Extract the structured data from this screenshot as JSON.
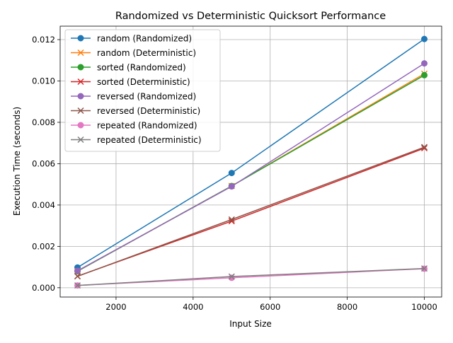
{
  "chart_data": {
    "type": "line",
    "title": "Randomized vs Deterministic Quicksort Performance",
    "xlabel": "Input Size",
    "ylabel": "Execution Time (seconds)",
    "x": [
      1000,
      5000,
      10000
    ],
    "xlim": [
      550,
      10450
    ],
    "ylim": [
      -0.00045,
      0.01265
    ],
    "x_ticks": [
      2000,
      4000,
      6000,
      8000,
      10000
    ],
    "x_tick_labels": [
      "2000",
      "4000",
      "6000",
      "8000",
      "10000"
    ],
    "y_ticks": [
      0,
      0.002,
      0.004,
      0.006,
      0.008,
      0.01,
      0.012
    ],
    "y_tick_labels": [
      "0.000",
      "0.002",
      "0.004",
      "0.006",
      "0.008",
      "0.010",
      "0.012"
    ],
    "grid": true,
    "legend_position": "top-left",
    "series": [
      {
        "name": "random (Randomized)",
        "values": [
          0.00098,
          0.00555,
          0.01203
        ],
        "color": "#1f77b4",
        "marker": "circle"
      },
      {
        "name": "random (Deterministic)",
        "values": [
          0.0008,
          0.00492,
          0.01035
        ],
        "color": "#ff7f0e",
        "marker": "x"
      },
      {
        "name": "sorted (Randomized)",
        "values": [
          0.0008,
          0.00492,
          0.01028
        ],
        "color": "#2ca02c",
        "marker": "circle"
      },
      {
        "name": "sorted (Deterministic)",
        "values": [
          0.00056,
          0.00322,
          0.00675
        ],
        "color": "#d62728",
        "marker": "x"
      },
      {
        "name": "reversed (Randomized)",
        "values": [
          0.00082,
          0.0049,
          0.01085
        ],
        "color": "#9467bd",
        "marker": "circle"
      },
      {
        "name": "reversed (Deterministic)",
        "values": [
          0.00055,
          0.0033,
          0.0068
        ],
        "color": "#8c564b",
        "marker": "x"
      },
      {
        "name": "repeated (Randomized)",
        "values": [
          0.00011,
          0.00048,
          0.00092
        ],
        "color": "#e377c2",
        "marker": "circle"
      },
      {
        "name": "repeated (Deterministic)",
        "values": [
          0.00011,
          0.00054,
          0.00093
        ],
        "color": "#7f7f7f",
        "marker": "x"
      }
    ]
  }
}
